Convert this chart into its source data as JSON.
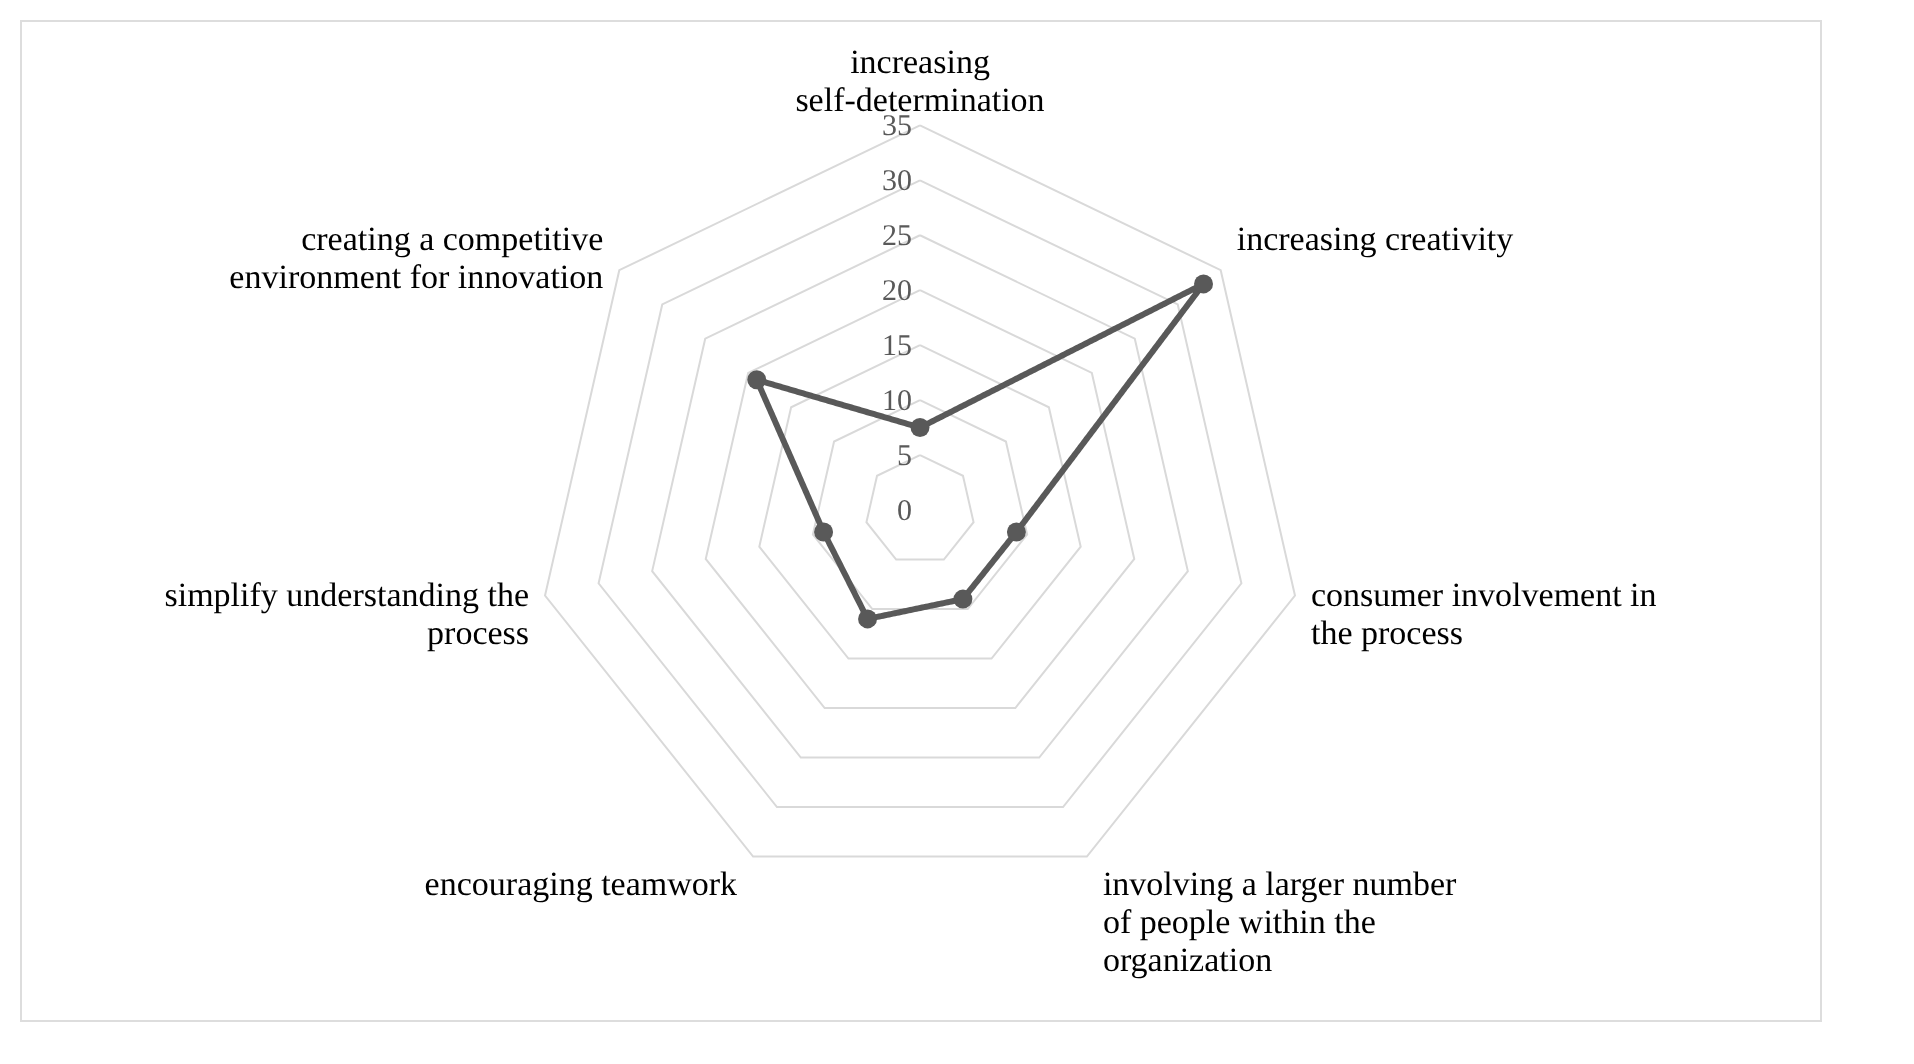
{
  "chart_data": {
    "type": "radar",
    "categories": [
      "increasing self-determination",
      "increasing creativity",
      "consumer involvement in the process",
      "involving a larger number of people within the organization",
      "encouraging teamwork",
      "simplify understanding the process",
      "creating a competitive environment for innovation"
    ],
    "series": [
      {
        "color": "#595959",
        "values": [
          7.5,
          33,
          9,
          9,
          11,
          9,
          19
        ]
      }
    ],
    "ylim": [
      0,
      35
    ],
    "yticks": [
      0,
      5,
      10,
      15,
      20,
      25,
      30,
      35
    ],
    "grid": true,
    "marker": "circle",
    "line_style": "solid"
  }
}
